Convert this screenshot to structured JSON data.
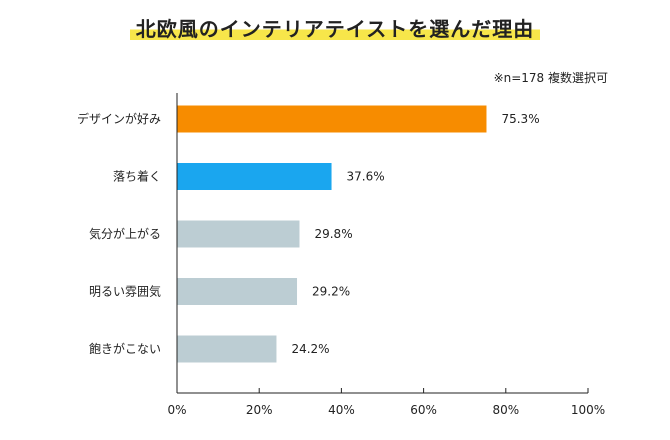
{
  "title": "北欧風のインテリアテイストを選んだ理由",
  "note": "※n=178 複数選択可",
  "chart_data": {
    "type": "bar",
    "orientation": "horizontal",
    "categories": [
      "デザインが好み",
      "落ち着く",
      "気分が上がる",
      "明るい雰囲気",
      "飽きがこない"
    ],
    "values": [
      75.3,
      37.6,
      29.8,
      29.2,
      24.2
    ],
    "value_labels": [
      "75.3%",
      "37.6%",
      "29.8%",
      "29.2%",
      "24.2%"
    ],
    "colors": [
      "#f78c00",
      "#1aa6ef",
      "#bccdd3",
      "#bccdd3",
      "#bccdd3"
    ],
    "xlim": [
      0,
      100
    ],
    "xticks": [
      0,
      20,
      40,
      60,
      80,
      100
    ],
    "xtick_labels": [
      "0%",
      "20%",
      "40%",
      "60%",
      "80%",
      "100%"
    ],
    "grid": false
  }
}
